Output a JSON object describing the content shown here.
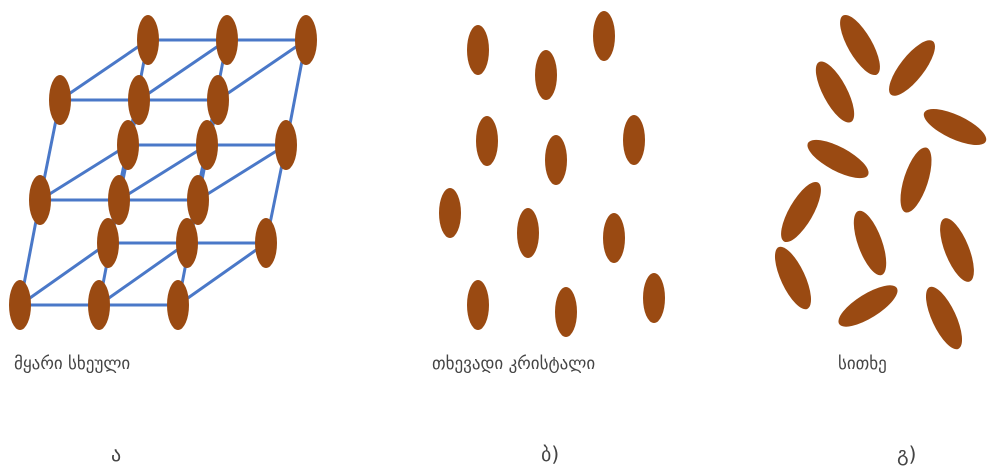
{
  "colors": {
    "particle": "#9a4a12",
    "lattice": "#4a78c8",
    "text": "#444444"
  },
  "panels": [
    {
      "caption": "მყარი სხეული",
      "letter": "ა"
    },
    {
      "caption": "თხევადი კრისტალი",
      "letter": "ბ)"
    },
    {
      "caption": "სითხე",
      "letter": "გ)"
    }
  ]
}
